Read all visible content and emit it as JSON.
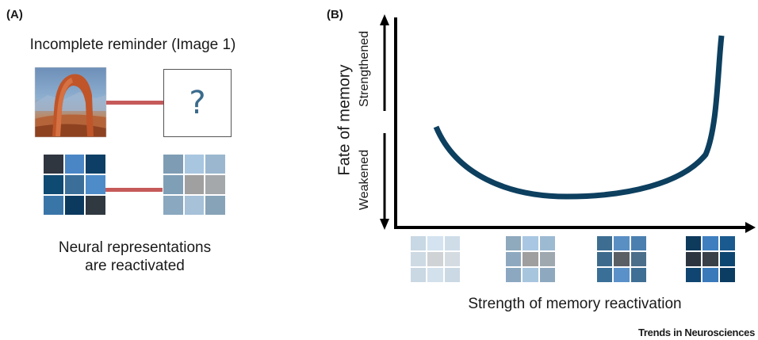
{
  "panel_a": {
    "label": "(A)",
    "title": "Incomplete reminder (Image 1)",
    "question_mark": "?",
    "caption_line1": "Neural representations",
    "caption_line2": "are reactivated",
    "image_icon": "arch-landscape-photo-icon",
    "full_grid_colors": [
      "#2f3640",
      "#4a86c5",
      "#0d3f66",
      "#0f4a72",
      "#3b6f9a",
      "#4d8cc8",
      "#3a75a8",
      "#0c3a5f",
      "#303840"
    ],
    "faded_grid_colors": [
      "#7e9db4",
      "#a8c6e0",
      "#9ab7cf",
      "#7f9fb7",
      "#a0a0a0",
      "#a5a8aa",
      "#8aa8bf",
      "#a6c1d8",
      "#86a3b8"
    ],
    "link_color": "#c65a5a"
  },
  "panel_b": {
    "label": "(B)",
    "y_axis_label": "Fate of memory",
    "y_top_label": "Strengthened",
    "y_bottom_label": "Weakened",
    "x_axis_label": "Strength of memory reactivation",
    "curve_color": "#0d3f5f",
    "reactivation_grids": [
      [
        "#c8d8e4",
        "#d4e3ef",
        "#cfdde9",
        "#cdd9e3",
        "#cfd3d6",
        "#d4dce2",
        "#c9d8e3",
        "#d3e1ec",
        "#cbd9e4"
      ],
      [
        "#8fa9bd",
        "#a9c7e2",
        "#9dbad3",
        "#8ea9bf",
        "#9f9f9f",
        "#9fa8af",
        "#8ba8c0",
        "#a8c5de",
        "#8ea9bf"
      ],
      [
        "#3d6e92",
        "#5a8fc4",
        "#4a7fb0",
        "#3d6a8c",
        "#5a5f66",
        "#4b6e8a",
        "#3a6f98",
        "#5a91c8",
        "#3f6f94"
      ],
      [
        "#0e3a5c",
        "#3f7fc0",
        "#1a5a8e",
        "#2c3440",
        "#3a4048",
        "#0d4670",
        "#0f4570",
        "#3a7abb",
        "#0b3c62"
      ]
    ]
  },
  "footer": {
    "source": "Trends in Neurosciences"
  }
}
